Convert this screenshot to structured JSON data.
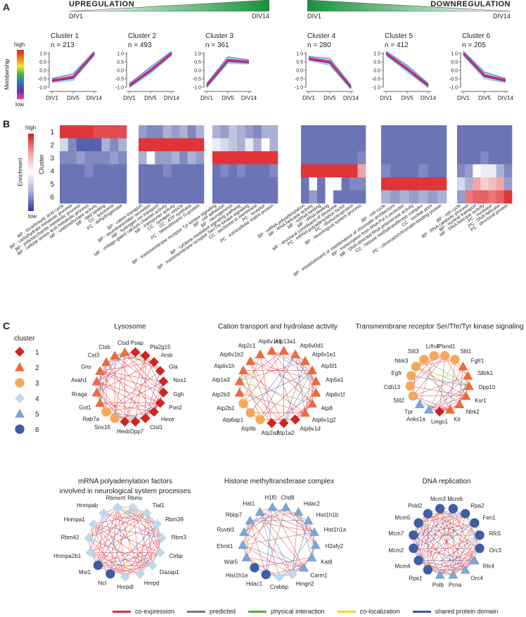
{
  "panels": {
    "a": "A",
    "b": "B",
    "c": "C"
  },
  "regulation": {
    "up": {
      "title": "UPREGULATION",
      "start": "DIV1",
      "end": "DIV14"
    },
    "down": {
      "title": "DOWNREGULATION",
      "start": "DIV1",
      "end": "DIV14"
    }
  },
  "membership": {
    "label": "Membership",
    "high": "high",
    "low": "low"
  },
  "enrichment": {
    "label": "Enrichment",
    "high": "high",
    "low": "low",
    "cluster_label": "Cluster",
    "rows": [
      "1",
      "2",
      "3",
      "4",
      "5",
      "6"
    ]
  },
  "chart_data": [
    {
      "type": "line",
      "title": "Cluster 1",
      "n": "n = 213",
      "categories": [
        "DIV1",
        "DIV5",
        "DIV14"
      ],
      "values": [
        -0.6,
        -0.4,
        1.0
      ],
      "ylim": [
        -1.0,
        1.0
      ],
      "yticks": [
        "1.0",
        "0.5",
        "0.0",
        "-0.5",
        "-1.0"
      ]
    },
    {
      "type": "line",
      "title": "Cluster 2",
      "n": "n = 493",
      "categories": [
        "DIV1",
        "DIV5",
        "DIV14"
      ],
      "values": [
        -0.9,
        0.0,
        1.0
      ],
      "ylim": [
        -1.0,
        1.0
      ],
      "yticks": [
        "1.0",
        "0.5",
        "0.0",
        "-0.5",
        "-1.0"
      ]
    },
    {
      "type": "line",
      "title": "Cluster 3",
      "n": "n = 361",
      "categories": [
        "DIV1",
        "DIV5",
        "DIV14"
      ],
      "values": [
        -0.9,
        0.6,
        0.5
      ],
      "ylim": [
        -1.0,
        1.0
      ],
      "yticks": [
        "1.0",
        "0.5",
        "0.0",
        "-0.5",
        "-1.0"
      ]
    },
    {
      "type": "line",
      "title": "Cluster 4",
      "n": "n = 280",
      "categories": [
        "DIV1",
        "DIV5",
        "DIV14"
      ],
      "values": [
        0.7,
        0.5,
        -1.0
      ],
      "ylim": [
        -1.0,
        1.0
      ],
      "yticks": [
        "1.0",
        "0.5",
        "0.0",
        "-0.5",
        "-1.0"
      ]
    },
    {
      "type": "line",
      "title": "Cluster 5",
      "n": "n = 412",
      "categories": [
        "DIV1",
        "DIV5",
        "DIV14"
      ],
      "values": [
        1.0,
        0.1,
        -0.9
      ],
      "ylim": [
        -1.0,
        1.0
      ],
      "yticks": [
        "1.0",
        "0.5",
        "0.0",
        "-0.5",
        "-1.0"
      ]
    },
    {
      "type": "line",
      "title": "Cluster 6",
      "n": "n = 205",
      "categories": [
        "DIV1",
        "DIV5",
        "DIV14"
      ],
      "values": [
        1.0,
        -0.3,
        -0.6
      ],
      "ylim": [
        -1.0,
        1.0
      ],
      "yticks": [
        "1.0",
        "0.5",
        "0.0",
        "-0.5",
        "-1.0"
      ]
    },
    {
      "type": "heatmap",
      "cols": [
        "BP : tricarboxylic acid cycle",
        "BP : carbohydrate metabolic process",
        "BP : polysaccharide metabolic process",
        "BP : cellular amino acid metabolic process",
        "MF : oxidoreductase activity",
        "MF : lipid binding",
        "CC : lysosome",
        "PC : dehydrogenase"
      ],
      "values": [
        [
          0.95,
          0.95,
          0.95,
          0.95,
          0.9,
          0.9,
          0.9,
          0.9
        ],
        [
          0.4,
          0.2,
          0.1,
          0.1,
          0.1,
          0.3,
          0.2,
          0.3
        ],
        [
          0.2,
          0.2,
          0.25,
          0.2,
          0.2,
          0.2,
          0.25,
          0.2
        ],
        [
          0.15,
          0.15,
          0.15,
          0.2,
          0.15,
          0.15,
          0.15,
          0.15
        ],
        [
          0.15,
          0.15,
          0.15,
          0.15,
          0.15,
          0.15,
          0.15,
          0.15
        ],
        [
          0.15,
          0.15,
          0.15,
          0.15,
          0.15,
          0.15,
          0.15,
          0.15
        ]
      ]
    },
    {
      "type": "heatmap",
      "cols": [
        "BP : cation transport",
        "BP : neurotransmitter secretion",
        "MF : hydrogen ion transport",
        "MF : voltage-gated calcium channel activity",
        "MF : transporter activity",
        "CC : synaptic vesicle",
        "CC : ATP synthase",
        "PC : heterotrimeric G-protein"
      ],
      "values": [
        [
          0.25,
          0.2,
          0.2,
          0.3,
          0.25,
          0.3,
          0.2,
          0.3
        ],
        [
          0.95,
          0.95,
          0.95,
          0.95,
          0.95,
          0.95,
          0.95,
          0.95
        ],
        [
          0.3,
          0.5,
          0.25,
          0.25,
          0.3,
          0.2,
          0.3,
          0.25
        ],
        [
          0.15,
          0.15,
          0.15,
          0.2,
          0.15,
          0.15,
          0.15,
          0.15
        ],
        [
          0.15,
          0.15,
          0.15,
          0.15,
          0.15,
          0.15,
          0.15,
          0.15
        ],
        [
          0.15,
          0.15,
          0.15,
          0.15,
          0.15,
          0.15,
          0.15,
          0.15
        ]
      ]
    },
    {
      "type": "heatmap",
      "cols": [
        "BP : transmembrane receptor Tyr kinase signaling",
        "BP : cell adhesion",
        "BP : neurogenesis",
        "BP : cytokine-mediated signaling pathway",
        "BP : transmembrane receptor Ser/Thr kinase signaling",
        "CC : anchored to membrane",
        "PC : receptor",
        "PC : extracellular matrix protein"
      ],
      "values": [
        [
          0.3,
          0.25,
          0.35,
          0.3,
          0.25,
          0.2,
          0.3,
          0.3
        ],
        [
          0.45,
          0.4,
          0.35,
          0.3,
          0.45,
          0.3,
          0.5,
          0.3
        ],
        [
          0.95,
          0.95,
          0.95,
          0.95,
          0.95,
          0.95,
          0.95,
          0.95
        ],
        [
          0.15,
          0.2,
          0.15,
          0.2,
          0.15,
          0.15,
          0.15,
          0.2
        ],
        [
          0.15,
          0.15,
          0.15,
          0.15,
          0.15,
          0.15,
          0.15,
          0.15
        ],
        [
          0.15,
          0.15,
          0.15,
          0.15,
          0.15,
          0.15,
          0.15,
          0.15
        ]
      ]
    },
    {
      "type": "heatmap",
      "cols": [
        "BP : mRNA polyadenylation",
        "MF : RNA helicase activity",
        "MF : mRNA binding",
        "MF : rRNA binding",
        "MF : structural constituent of ribosome",
        "PC : mRNA polyadenylation factor",
        "PC : ribonucleoprotein",
        "BP : neurological system process"
      ],
      "values": [
        [
          0.15,
          0.15,
          0.15,
          0.15,
          0.15,
          0.15,
          0.15,
          0.15
        ],
        [
          0.15,
          0.15,
          0.15,
          0.15,
          0.15,
          0.15,
          0.15,
          0.15
        ],
        [
          0.15,
          0.15,
          0.15,
          0.15,
          0.15,
          0.15,
          0.15,
          0.2
        ],
        [
          0.95,
          0.95,
          0.95,
          0.95,
          0.95,
          0.95,
          0.95,
          0.7
        ],
        [
          0.15,
          0.5,
          0.15,
          0.5,
          0.5,
          0.15,
          0.2,
          0.2
        ],
        [
          0.15,
          0.25,
          0.15,
          0.5,
          0.15,
          0.15,
          0.15,
          0.15
        ]
      ]
    },
    {
      "type": "heatmap",
      "cols": [
        "BP : cell cycle",
        "BP : establishment or maintenance of chromatin architecture",
        "BP : transcription from RNA Pol II promoter",
        "MF : DNA-directed RNA polymerase activity",
        "CC : histone methyltransferase complex",
        "CC : nuclear pore",
        "PC : chromatin/chromatin-binding protein"
      ],
      "values": [
        [
          0.15,
          0.15,
          0.15,
          0.15,
          0.15,
          0.15,
          0.15
        ],
        [
          0.15,
          0.15,
          0.15,
          0.15,
          0.15,
          0.15,
          0.15
        ],
        [
          0.15,
          0.15,
          0.15,
          0.15,
          0.15,
          0.15,
          0.15
        ],
        [
          0.2,
          0.15,
          0.15,
          0.15,
          0.2,
          0.15,
          0.15
        ],
        [
          0.95,
          0.95,
          0.95,
          0.95,
          0.95,
          0.95,
          0.95
        ],
        [
          0.3,
          0.25,
          0.3,
          0.25,
          0.3,
          0.25,
          0.3
        ]
      ]
    },
    {
      "type": "heatmap",
      "cols": [
        "BP : cell cycle",
        "BP : RNA catabolic process",
        "BP : nuclear transport",
        "MF : DNA helicase activity",
        "PC : nuclease",
        "PC : DNA helicase",
        "PC : structural protein"
      ],
      "values": [
        [
          0.15,
          0.15,
          0.15,
          0.15,
          0.15,
          0.15,
          0.15
        ],
        [
          0.15,
          0.15,
          0.15,
          0.15,
          0.15,
          0.15,
          0.15
        ],
        [
          0.15,
          0.15,
          0.15,
          0.2,
          0.15,
          0.15,
          0.15
        ],
        [
          0.2,
          0.25,
          0.5,
          0.45,
          0.45,
          0.3,
          0.2
        ],
        [
          0.4,
          0.3,
          0.7,
          0.6,
          0.65,
          0.7,
          0.25
        ],
        [
          0.25,
          0.8,
          0.85,
          0.85,
          0.8,
          0.85,
          0.95
        ]
      ]
    }
  ],
  "legend": {
    "title": "cluster",
    "items": [
      {
        "label": "1",
        "shape": "diamond",
        "color": "#d0241f"
      },
      {
        "label": "2",
        "shape": "triangle",
        "color": "#ec6a3c"
      },
      {
        "label": "3",
        "shape": "circle",
        "color": "#f6a85a"
      },
      {
        "label": "4",
        "shape": "diamond",
        "color": "#bcd9ee"
      },
      {
        "label": "5",
        "shape": "triangle",
        "color": "#7aa6d2"
      },
      {
        "label": "6",
        "shape": "circle",
        "color": "#3b5ea6"
      }
    ]
  },
  "edge_legend": [
    {
      "label": "co-expression",
      "color": "#e02b35"
    },
    {
      "label": "predicted",
      "color": "#777777"
    },
    {
      "label": "physical interaction",
      "color": "#59a83d"
    },
    {
      "label": "co-localization",
      "color": "#f5d628"
    },
    {
      "label": "shared protein domain",
      "color": "#3a57a5"
    }
  ],
  "networks": [
    {
      "title": "Lysosome",
      "nodes": [
        {
          "g": "Psap",
          "c": 1
        },
        {
          "g": "Pla2g15",
          "c": 1
        },
        {
          "g": "Arsb",
          "c": 1
        },
        {
          "g": "Gla",
          "c": 1
        },
        {
          "g": "Nos1",
          "c": 1
        },
        {
          "g": "Ggh",
          "c": 1
        },
        {
          "g": "Pon2",
          "c": 1
        },
        {
          "g": "Hexa",
          "c": 1
        },
        {
          "g": "Ctsl1",
          "c": 1
        },
        {
          "g": "Dpp7",
          "c": 1
        },
        {
          "g": "Hexb",
          "c": 1
        },
        {
          "g": "Snx16",
          "c": 3
        },
        {
          "g": "Rab7a",
          "c": 3
        },
        {
          "g": "Got1",
          "c": 2
        },
        {
          "g": "Rraga",
          "c": 2
        },
        {
          "g": "Asah1",
          "c": 2
        },
        {
          "g": "Gns",
          "c": 2
        },
        {
          "g": "Cst3",
          "c": 2
        },
        {
          "g": "Ctsb",
          "c": 2
        },
        {
          "g": "Ctsd",
          "c": 2
        }
      ]
    },
    {
      "title": "Cation transport and hydrolase activity",
      "nodes": [
        {
          "g": "Atp13a1",
          "c": 2
        },
        {
          "g": "Atp6v0d1",
          "c": 2
        },
        {
          "g": "Atp6v1e1",
          "c": 2
        },
        {
          "g": "Atp5f1",
          "c": 2
        },
        {
          "g": "Atp5a1",
          "c": 2
        },
        {
          "g": "Atp6v1f",
          "c": 2
        },
        {
          "g": "Atp8",
          "c": 2
        },
        {
          "g": "Atp6v1g2",
          "c": 2
        },
        {
          "g": "Atp6v1d",
          "c": 1
        },
        {
          "g": "Atp1a2",
          "c": 1
        },
        {
          "g": "Atp2a2",
          "c": 1
        },
        {
          "g": "Atp9b",
          "c": 3
        },
        {
          "g": "Atp6ap1",
          "c": 3
        },
        {
          "g": "Atp2b1",
          "c": 3
        },
        {
          "g": "Atp2b3",
          "c": 2
        },
        {
          "g": "Atp1a3",
          "c": 2
        },
        {
          "g": "Atp6v1h",
          "c": 2
        },
        {
          "g": "Atp6v1b2",
          "c": 2
        },
        {
          "g": "Atp2c1",
          "c": 2
        },
        {
          "g": "Atp6v1c1",
          "c": 2
        }
      ]
    },
    {
      "title": "Transmembrane receptor Ser/Thr/Tyr kinase signaling",
      "nodes": [
        {
          "g": "Plxnd1",
          "c": 3
        },
        {
          "g": "Slit1",
          "c": 3
        },
        {
          "g": "Fgfr1",
          "c": 2
        },
        {
          "g": "Slitrk1",
          "c": 2
        },
        {
          "g": "Dpp10",
          "c": 2
        },
        {
          "g": "Ksr1",
          "c": 2
        },
        {
          "g": "Ntrk2",
          "c": 2
        },
        {
          "g": "Kit",
          "c": 2
        },
        {
          "g": "Lingo1",
          "c": 1
        },
        {
          "g": "Anks1a",
          "c": 5
        },
        {
          "g": "Tpr",
          "c": 5
        },
        {
          "g": "Slit2",
          "c": 3
        },
        {
          "g": "Cdh13",
          "c": 3
        },
        {
          "g": "Egfr",
          "c": 3
        },
        {
          "g": "Ntrk3",
          "c": 3
        },
        {
          "g": "Slit3",
          "c": 3
        },
        {
          "g": "Lrfn4",
          "c": 3
        }
      ]
    },
    {
      "title": "mRNA polyadenylation factors",
      "title2": "involved in neurological system processes",
      "nodes": [
        {
          "g": "Rbmx",
          "c": 4
        },
        {
          "g": "Tial1",
          "c": 4
        },
        {
          "g": "Rbm39",
          "c": 4
        },
        {
          "g": "Rbm3",
          "c": 4
        },
        {
          "g": "Cirbp",
          "c": 4
        },
        {
          "g": "Dazap1",
          "c": 4
        },
        {
          "g": "Hnrpd",
          "c": 4
        },
        {
          "g": "Hnrpdl",
          "c": 4
        },
        {
          "g": "Ncl",
          "c": 6
        },
        {
          "g": "Msi1",
          "c": 6
        },
        {
          "g": "Hnmpa2b1",
          "c": 4
        },
        {
          "g": "Rbm42",
          "c": 4
        },
        {
          "g": "Hnmpa1",
          "c": 4
        },
        {
          "g": "Hnmpab",
          "c": 4
        },
        {
          "g": "Rbmxrtl",
          "c": 4
        }
      ]
    },
    {
      "title": "Histone methyltransferase complex",
      "nodes": [
        {
          "g": "Chd8",
          "c": 5
        },
        {
          "g": "Hdac2",
          "c": 5
        },
        {
          "g": "Hist1h1b",
          "c": 5
        },
        {
          "g": "Hist1h1a",
          "c": 5
        },
        {
          "g": "H2afy2",
          "c": 5
        },
        {
          "g": "Kat8",
          "c": 5
        },
        {
          "g": "Carm1",
          "c": 5
        },
        {
          "g": "Hmgn2",
          "c": 4
        },
        {
          "g": "Crebbp",
          "c": 4
        },
        {
          "g": "Hdac1",
          "c": 6
        },
        {
          "g": "Hist1h1e",
          "c": 6
        },
        {
          "g": "Wdr5",
          "c": 5
        },
        {
          "g": "Ehmt1",
          "c": 5
        },
        {
          "g": "Ruvbl1",
          "c": 5
        },
        {
          "g": "Rbbp7",
          "c": 5
        },
        {
          "g": "Hat1",
          "c": 5
        },
        {
          "g": "H1f0",
          "c": 5
        }
      ]
    },
    {
      "title": "DNA replication",
      "nodes": [
        {
          "g": "Mcm6",
          "c": 6
        },
        {
          "g": "Rpa2",
          "c": 6
        },
        {
          "g": "Fen1",
          "c": 6
        },
        {
          "g": "Rfc5",
          "c": 6
        },
        {
          "g": "Orc3",
          "c": 6
        },
        {
          "g": "Rfc4",
          "c": 5
        },
        {
          "g": "Orc4",
          "c": 5
        },
        {
          "g": "Pcna",
          "c": 5
        },
        {
          "g": "Polb",
          "c": 5
        },
        {
          "g": "Rpa1",
          "c": 6
        },
        {
          "g": "Mcm4",
          "c": 6
        },
        {
          "g": "Mcm2",
          "c": 6
        },
        {
          "g": "Mcm7",
          "c": 6
        },
        {
          "g": "Mcm5",
          "c": 6
        },
        {
          "g": "Pold2",
          "c": 6
        },
        {
          "g": "Mcm3",
          "c": 6
        }
      ]
    }
  ]
}
